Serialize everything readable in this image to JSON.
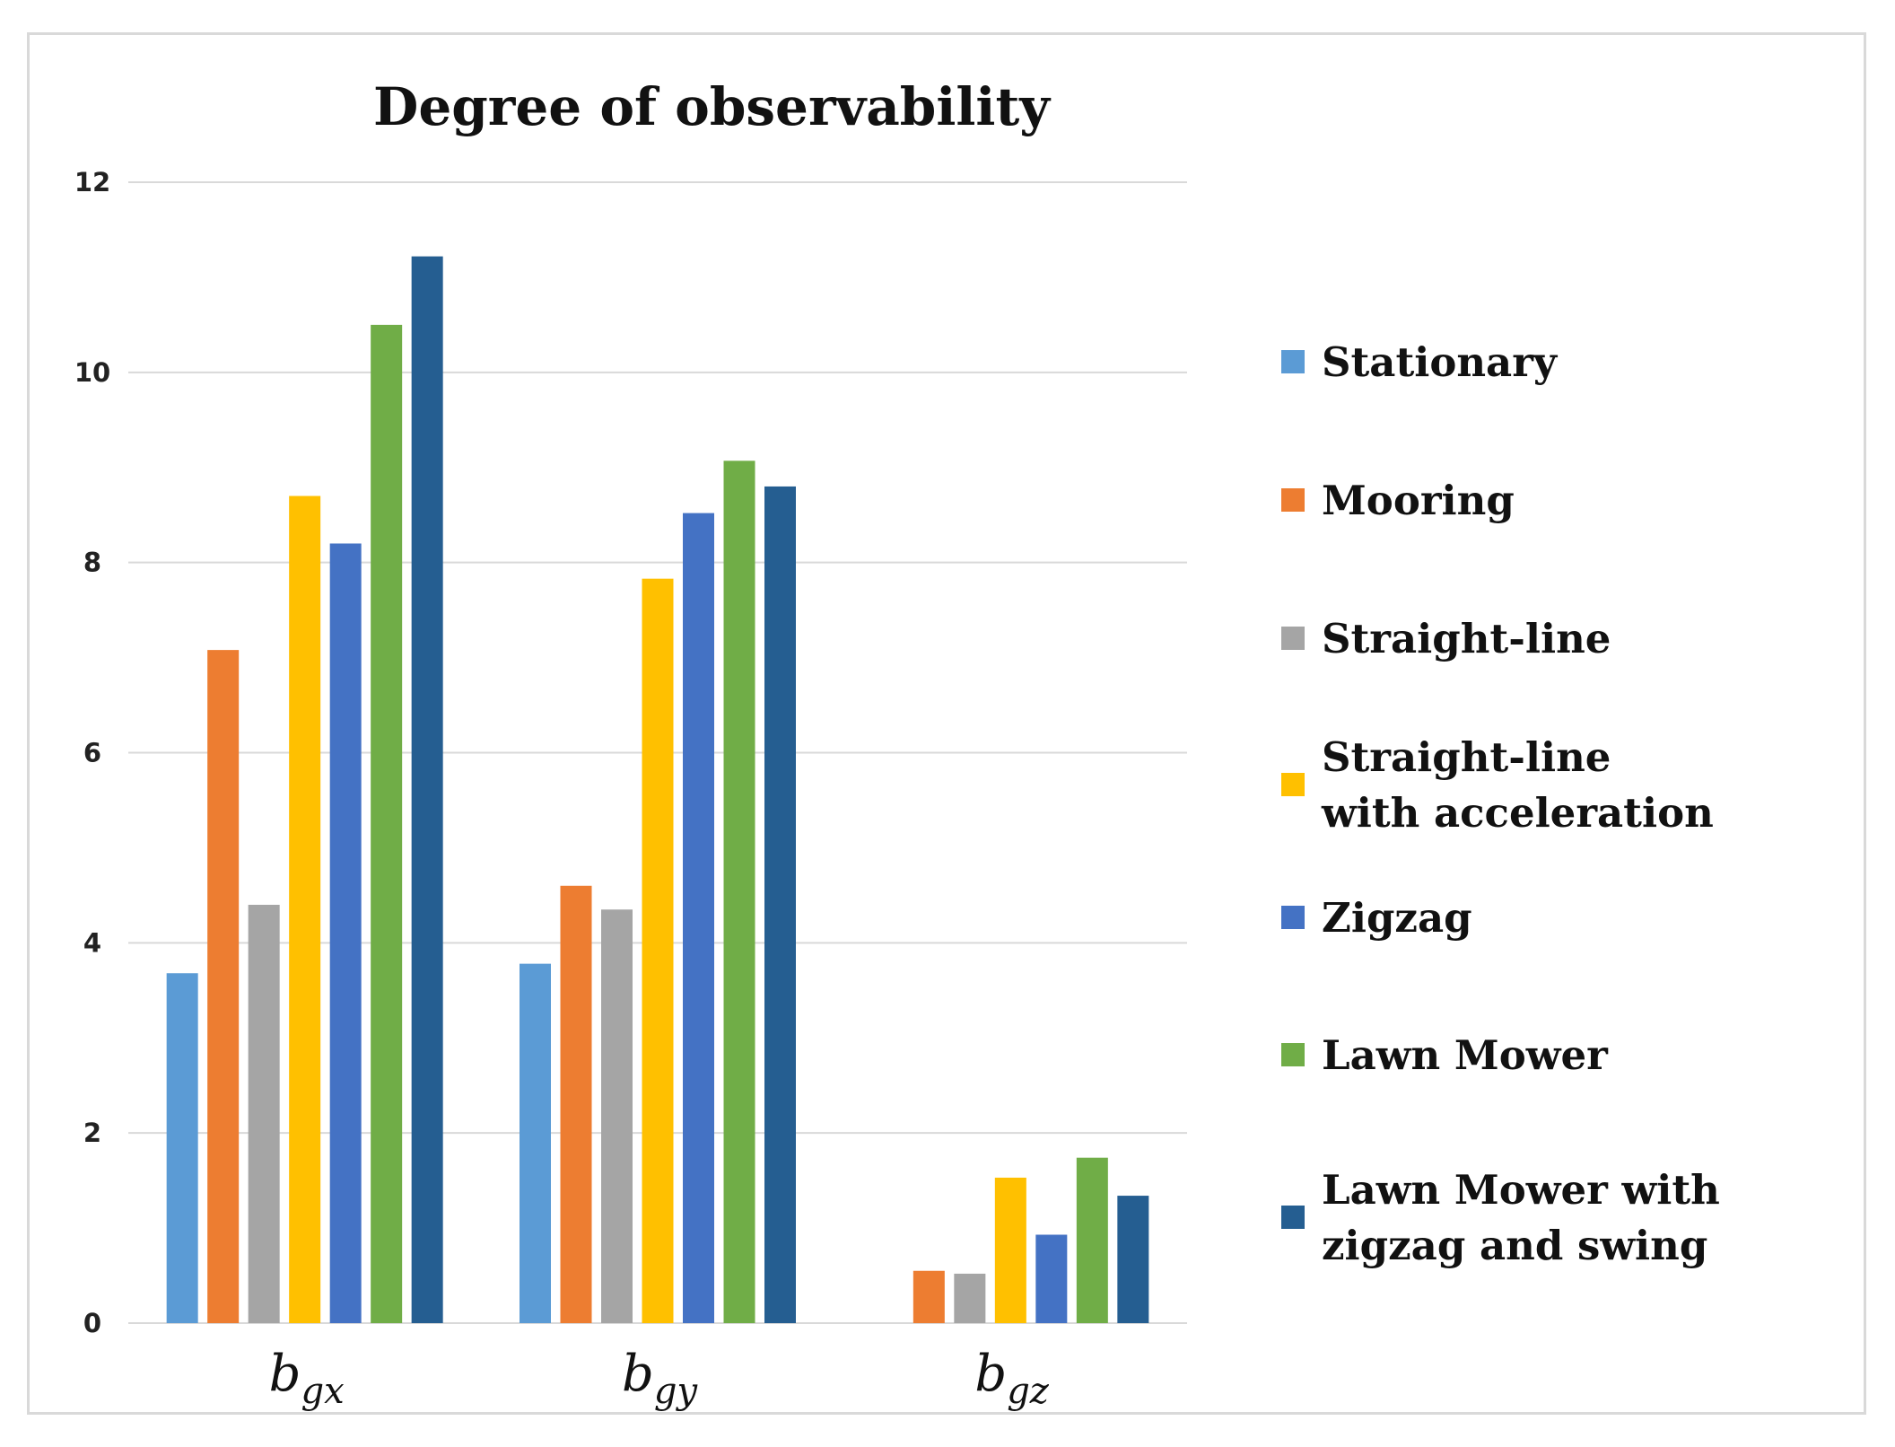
{
  "chart_data": {
    "type": "bar",
    "title": "Degree of observability",
    "xlabel": "",
    "ylabel": "",
    "ylim": [
      0,
      12
    ],
    "yticks": [
      0,
      2,
      4,
      6,
      8,
      10,
      12
    ],
    "grid": true,
    "legend_position": "right",
    "categories": [
      {
        "base": "b",
        "sub": "gx"
      },
      {
        "base": "b",
        "sub": "gy"
      },
      {
        "base": "b",
        "sub": "gz"
      }
    ],
    "series": [
      {
        "name": "Stationary",
        "legend_lines": [
          "Stationary"
        ],
        "color": "#5B9BD5",
        "values": [
          3.68,
          3.78,
          0
        ]
      },
      {
        "name": "Mooring",
        "legend_lines": [
          "Mooring"
        ],
        "color": "#ED7D31",
        "values": [
          7.08,
          4.6,
          0.55
        ]
      },
      {
        "name": "Straight-line",
        "legend_lines": [
          "Straight-line"
        ],
        "color": "#A5A5A5",
        "values": [
          4.4,
          4.35,
          0.52
        ]
      },
      {
        "name": "Straight-line with acceleration",
        "legend_lines": [
          "Straight-line",
          "with acceleration"
        ],
        "color": "#FFC000",
        "values": [
          8.7,
          7.83,
          1.53
        ]
      },
      {
        "name": " Zigzag",
        "legend_lines": [
          " Zigzag"
        ],
        "color": "#4472C4",
        "values": [
          8.2,
          8.52,
          0.93
        ]
      },
      {
        "name": "Lawn Mower",
        "legend_lines": [
          "Lawn Mower"
        ],
        "color": "#70AD47",
        "values": [
          10.5,
          9.07,
          1.74
        ]
      },
      {
        "name": "Lawn Mower with zigzag and swing",
        "legend_lines": [
          "Lawn Mower with",
          "zigzag and swing"
        ],
        "color": "#255E91",
        "values": [
          11.22,
          8.8,
          1.34
        ]
      }
    ]
  }
}
